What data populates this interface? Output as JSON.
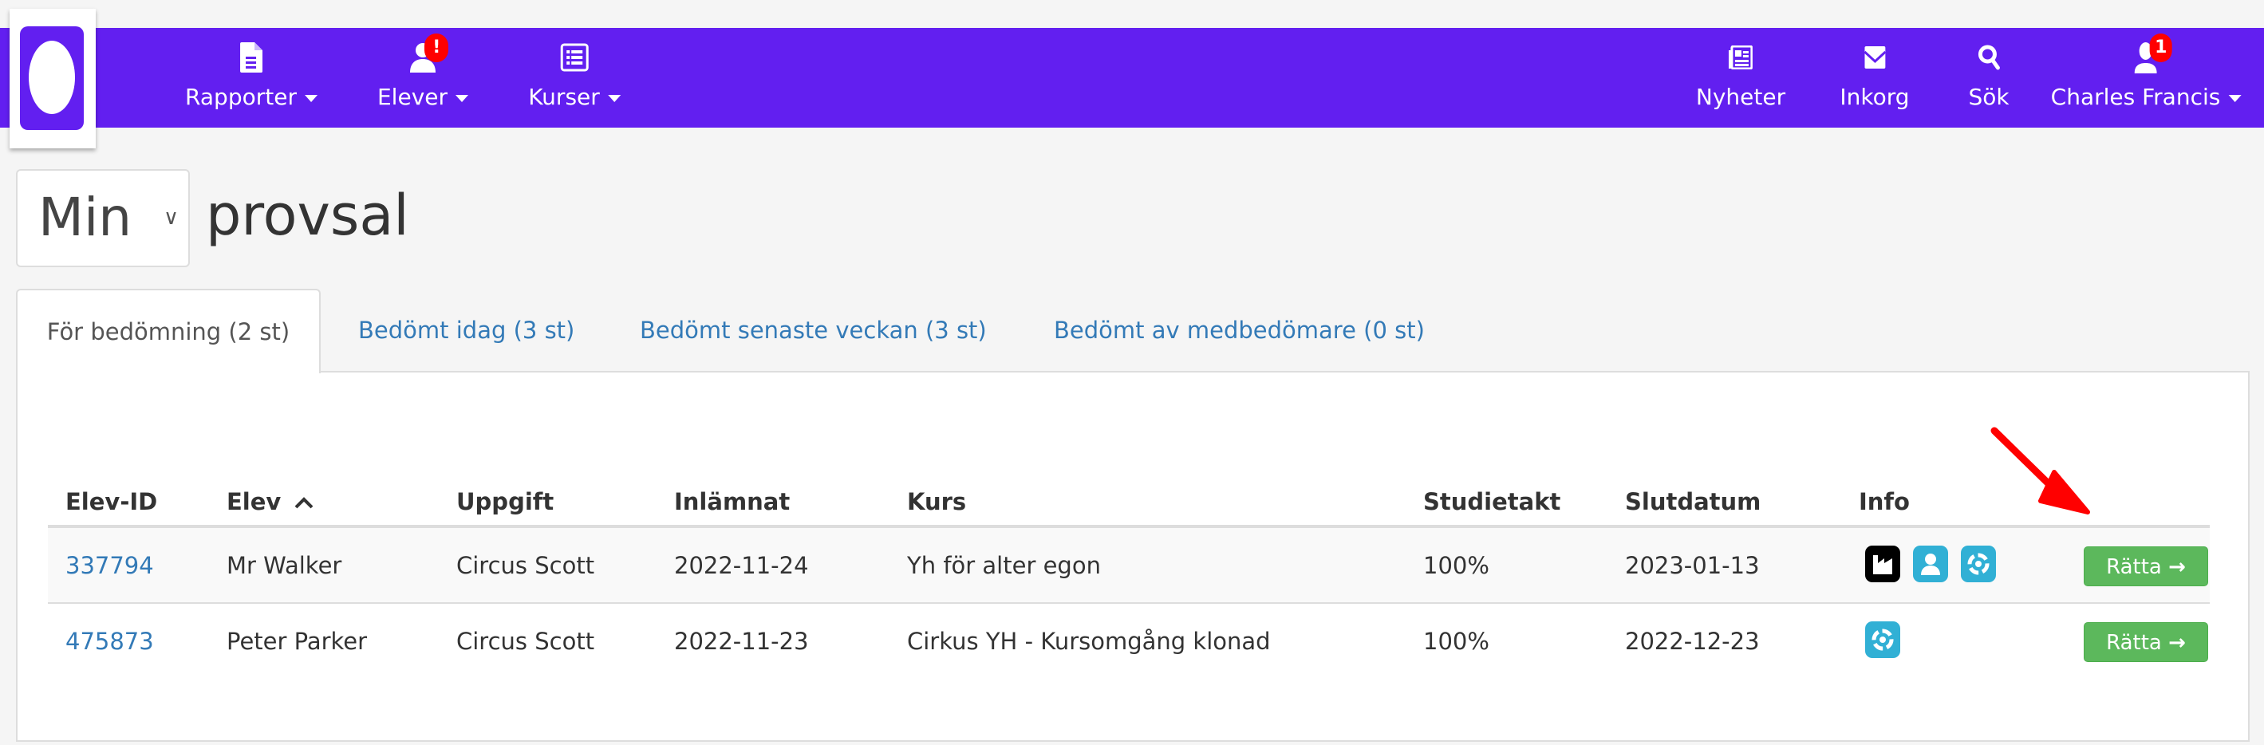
{
  "nav": {
    "left": [
      {
        "label": "Rapporter",
        "icon": "file-icon"
      },
      {
        "label": "Elever",
        "icon": "user-icon",
        "badge": "!"
      },
      {
        "label": "Kurser",
        "icon": "list-icon"
      }
    ],
    "right": [
      {
        "label": "Nyheter",
        "icon": "newspaper-icon"
      },
      {
        "label": "Inkorg",
        "icon": "envelope-icon"
      },
      {
        "label": "Sök",
        "icon": "search-icon"
      },
      {
        "label": "Charles Francis",
        "icon": "user-icon",
        "badge": "1"
      }
    ]
  },
  "header": {
    "select_value": "Min",
    "title": "provsal"
  },
  "tabs": [
    {
      "label": "För bedömning (2 st)",
      "active": true
    },
    {
      "label": "Bedömt idag (3 st)"
    },
    {
      "label": "Bedömt senaste veckan (3 st)"
    },
    {
      "label": "Bedömt av medbedömare (0 st)"
    }
  ],
  "table": {
    "columns": [
      "Elev-ID",
      "Elev",
      "Uppgift",
      "Inlämnat",
      "Kurs",
      "Studietakt",
      "Slutdatum",
      "Info"
    ],
    "rows": [
      {
        "id": "337794",
        "elev": "Mr Walker",
        "uppgift": "Circus Scott",
        "inlamnat": "2022-11-24",
        "kurs": "Yh för alter egon",
        "studietakt": "100%",
        "slutdatum": "2023-01-13",
        "info": [
          "factory-icon",
          "user-icon",
          "lifebuoy-icon"
        ],
        "action": "Rätta"
      },
      {
        "id": "475873",
        "elev": "Peter Parker",
        "uppgift": "Circus Scott",
        "inlamnat": "2022-11-23",
        "kurs": "Cirkus YH - Kursomgång klonad",
        "studietakt": "100%",
        "slutdatum": "2022-12-23",
        "info": [
          "lifebuoy-icon"
        ],
        "action": "Rätta"
      }
    ]
  },
  "colors": {
    "brand": "#621ff0",
    "success": "#5cb85c",
    "info": "#31b0d5",
    "badge": "#ff0000",
    "annotation_arrow": "#ff0000"
  }
}
